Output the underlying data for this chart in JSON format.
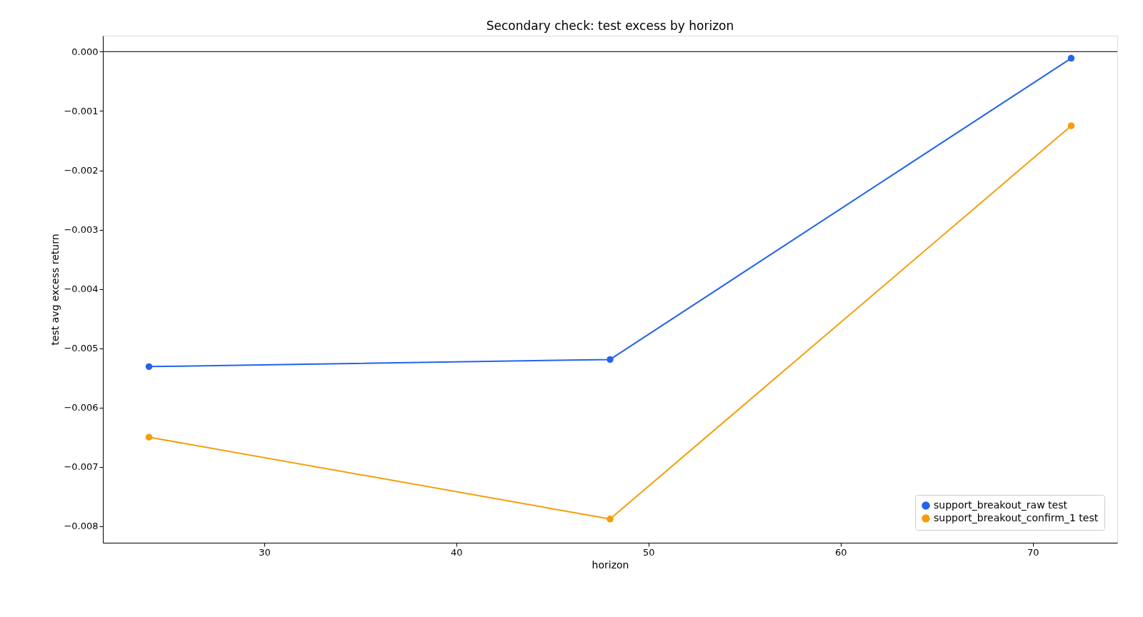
{
  "chart_data": {
    "type": "line",
    "title": "Secondary check: test excess by horizon",
    "xlabel": "horizon",
    "ylabel": "test avg excess return",
    "x": [
      24,
      48,
      72
    ],
    "series": [
      {
        "name": "support_breakout_raw test",
        "color": "#2563eb",
        "values": [
          -0.00531,
          -0.00519,
          -0.00011
        ]
      },
      {
        "name": "support_breakout_confirm_1 test",
        "color": "#f59e0b",
        "values": [
          -0.0065,
          -0.00788,
          -0.00125
        ]
      }
    ],
    "xlim": [
      21.6,
      74.4
    ],
    "xticks": [
      30,
      40,
      50,
      60,
      70
    ],
    "ylim": [
      -0.00828,
      0.00027
    ],
    "yticks": [
      {
        "value": -0.008,
        "label": "−0.008"
      },
      {
        "value": -0.007,
        "label": "−0.007"
      },
      {
        "value": -0.006,
        "label": "−0.006"
      },
      {
        "value": -0.005,
        "label": "−0.005"
      },
      {
        "value": -0.004,
        "label": "−0.004"
      },
      {
        "value": -0.003,
        "label": "−0.003"
      },
      {
        "value": -0.002,
        "label": "−0.002"
      },
      {
        "value": -0.001,
        "label": "−0.001"
      },
      {
        "value": 0,
        "label": "0.000"
      }
    ],
    "ref_lines": [
      {
        "axis": "y",
        "value": 0,
        "color": "#1f2a44"
      }
    ],
    "grid": false,
    "legend": "bottom right",
    "marker": "circle",
    "line_style": "solid"
  }
}
